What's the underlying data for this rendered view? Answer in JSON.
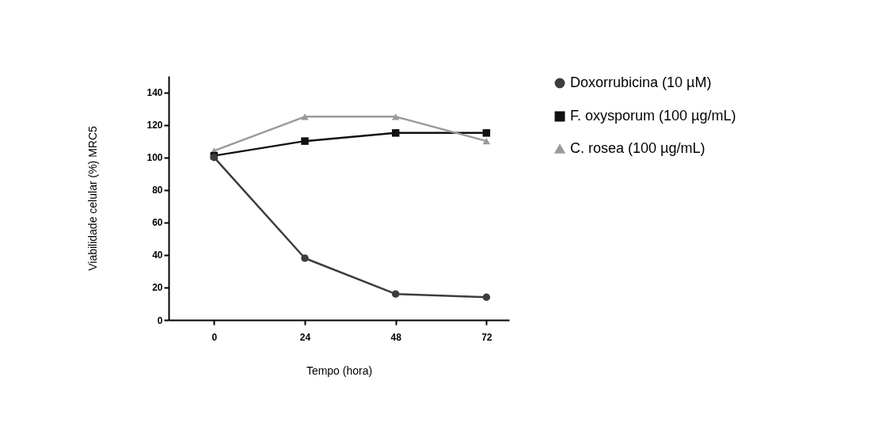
{
  "chart_data": {
    "type": "line",
    "xlabel": "Tempo (hora)",
    "ylabel": "Viabilidade celular (%) MRC5",
    "x": [
      0,
      24,
      48,
      72
    ],
    "xlim": [
      -12,
      78
    ],
    "xticks": [
      0,
      24,
      48,
      72
    ],
    "ylim": [
      0,
      150
    ],
    "yticks": [
      0,
      20,
      40,
      60,
      80,
      100,
      120,
      140
    ],
    "grid": false,
    "legend": "top right",
    "line_style": "solid",
    "series": [
      {
        "name": "Doxorrubicina (10 µM)",
        "color": "#3d3d3d",
        "marker": "circle",
        "values": [
          100,
          38,
          16,
          14
        ]
      },
      {
        "name": "F. oxysporum (100 µg/mL)",
        "color": "#111111",
        "marker": "square",
        "values": [
          101,
          110,
          115,
          115
        ]
      },
      {
        "name": "C. rosea (100 µg/mL)",
        "color": "#9a9a9a",
        "marker": "triangle",
        "values": [
          104,
          125,
          125,
          110
        ]
      }
    ]
  }
}
